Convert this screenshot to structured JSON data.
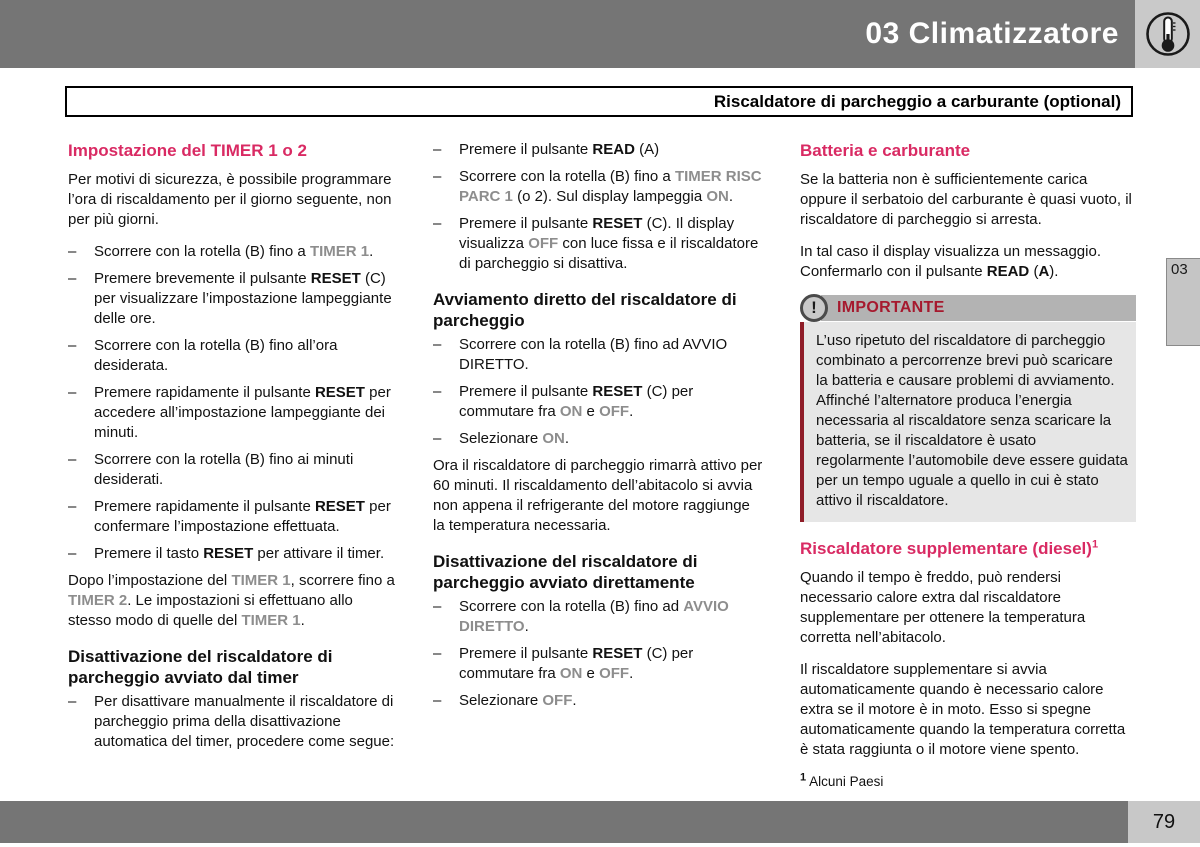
{
  "header": {
    "chapter_title": "03 Climatizzatore",
    "icon": "thermometer-icon"
  },
  "section_title": "Riscaldatore di parcheggio a carburante (optional)",
  "side_tab": "03",
  "page_number": "79",
  "colors": {
    "accent_heading": "#d92a63",
    "gray_term": "#8d8d8d",
    "note_red": "#a6192e",
    "bar_gray": "#757575",
    "icon_panel_gray": "#c9c9c9"
  },
  "columns": [
    {
      "blocks": [
        {
          "type": "heading-accent",
          "segments": [
            {
              "t": "Impostazione del TIMER 1 o 2"
            }
          ]
        },
        {
          "type": "para",
          "segments": [
            {
              "t": "Per motivi di sicurezza, è possibile programmare l’ora di riscaldamento per il giorno seguente, non per più giorni."
            }
          ]
        },
        {
          "type": "list",
          "items": [
            [
              {
                "t": "Scorrere con la rotella (B) fino a "
              },
              {
                "t": "TIMER 1",
                "s": "g"
              },
              {
                "t": "."
              }
            ],
            [
              {
                "t": "Premere brevemente il pulsante "
              },
              {
                "t": "RESET",
                "s": "b"
              },
              {
                "t": " (C) per visualizzare l’impostazione lampeggiante delle ore."
              }
            ],
            [
              {
                "t": "Scorrere con la rotella (B) fino all’ora desiderata."
              }
            ],
            [
              {
                "t": "Premere rapidamente il pulsante "
              },
              {
                "t": "RESET",
                "s": "b"
              },
              {
                "t": " per accedere all’impostazione lampeggiante dei minuti."
              }
            ],
            [
              {
                "t": "Scorrere con la rotella (B) fino ai minuti desiderati."
              }
            ],
            [
              {
                "t": "Premere rapidamente il pulsante "
              },
              {
                "t": "RESET",
                "s": "b"
              },
              {
                "t": " per confermare l’impostazione effettuata."
              }
            ],
            [
              {
                "t": "Premere il tasto "
              },
              {
                "t": "RESET",
                "s": "b"
              },
              {
                "t": " per attivare il timer."
              }
            ]
          ]
        },
        {
          "type": "para",
          "segments": [
            {
              "t": "Dopo l’impostazione del "
            },
            {
              "t": "TIMER 1",
              "s": "g"
            },
            {
              "t": ", scorrere fino a "
            },
            {
              "t": "TIMER 2",
              "s": "g"
            },
            {
              "t": ". Le impostazioni si effettuano allo stesso modo di quelle del "
            },
            {
              "t": "TIMER 1",
              "s": "g"
            },
            {
              "t": "."
            }
          ]
        },
        {
          "type": "heading",
          "segments": [
            {
              "t": "Disattivazione del riscaldatore di parcheggio avviato dal timer"
            }
          ]
        },
        {
          "type": "list",
          "items": [
            [
              {
                "t": "Per disattivare manualmente il riscaldatore di parcheggio prima della disattivazione automatica del timer, procedere come segue:"
              }
            ]
          ]
        }
      ]
    },
    {
      "blocks": [
        {
          "type": "list",
          "items": [
            [
              {
                "t": "Premere il pulsante "
              },
              {
                "t": "READ",
                "s": "b"
              },
              {
                "t": " (A)"
              }
            ],
            [
              {
                "t": "Scorrere con la rotella (B) fino a "
              },
              {
                "t": "TIMER RISC PARC 1",
                "s": "g"
              },
              {
                "t": " (o 2). Sul display lampeggia "
              },
              {
                "t": "ON",
                "s": "g"
              },
              {
                "t": "."
              }
            ],
            [
              {
                "t": "Premere il pulsante "
              },
              {
                "t": "RESET",
                "s": "b"
              },
              {
                "t": " (C). Il display visualizza "
              },
              {
                "t": "OFF",
                "s": "g"
              },
              {
                "t": " con luce fissa e il riscaldatore di parcheggio si disattiva."
              }
            ]
          ]
        },
        {
          "type": "heading",
          "segments": [
            {
              "t": "Avviamento diretto del riscaldatore di parcheggio"
            }
          ]
        },
        {
          "type": "list",
          "items": [
            [
              {
                "t": "Scorrere con la rotella (B) fino ad AVVIO DIRETTO."
              }
            ],
            [
              {
                "t": "Premere il pulsante "
              },
              {
                "t": "RESET",
                "s": "b"
              },
              {
                "t": " (C) per commutare fra "
              },
              {
                "t": "ON",
                "s": "g"
              },
              {
                "t": " e "
              },
              {
                "t": "OFF",
                "s": "g"
              },
              {
                "t": "."
              }
            ],
            [
              {
                "t": "Selezionare "
              },
              {
                "t": "ON",
                "s": "g"
              },
              {
                "t": "."
              }
            ]
          ]
        },
        {
          "type": "para",
          "segments": [
            {
              "t": "Ora il riscaldatore di parcheggio rimarrà attivo per 60 minuti. Il riscaldamento dell’abitacolo si avvia non appena il refrigerante del motore raggiunge la temperatura necessaria."
            }
          ]
        },
        {
          "type": "heading",
          "segments": [
            {
              "t": "Disattivazione del riscaldatore di parcheggio avviato direttamente"
            }
          ]
        },
        {
          "type": "list",
          "items": [
            [
              {
                "t": "Scorrere con la rotella (B) fino ad "
              },
              {
                "t": "AVVIO DIRETTO",
                "s": "g"
              },
              {
                "t": "."
              }
            ],
            [
              {
                "t": "Premere il pulsante "
              },
              {
                "t": "RESET",
                "s": "b"
              },
              {
                "t": " (C) per commutare fra "
              },
              {
                "t": "ON",
                "s": "g"
              },
              {
                "t": " e "
              },
              {
                "t": "OFF",
                "s": "g"
              },
              {
                "t": "."
              }
            ],
            [
              {
                "t": "Selezionare "
              },
              {
                "t": "OFF",
                "s": "g"
              },
              {
                "t": "."
              }
            ]
          ]
        }
      ]
    },
    {
      "blocks": [
        {
          "type": "heading-accent",
          "segments": [
            {
              "t": "Batteria e carburante"
            }
          ]
        },
        {
          "type": "para",
          "segments": [
            {
              "t": "Se la batteria non è sufficientemente carica oppure il serbatoio del carburante è quasi vuoto, il riscaldatore di parcheggio si arresta."
            }
          ]
        },
        {
          "type": "para",
          "segments": [
            {
              "t": "In tal caso il display visualizza un messaggio. Confermarlo con il pulsante "
            },
            {
              "t": "READ",
              "s": "b"
            },
            {
              "t": " ("
            },
            {
              "t": "A",
              "s": "b"
            },
            {
              "t": ")."
            }
          ]
        },
        {
          "type": "note",
          "title": "IMPORTANTE",
          "icon": "exclamation-icon",
          "paragraphs": [
            "L’uso ripetuto del riscaldatore di parcheggio combinato a percorrenze brevi può scaricare la batteria e causare problemi di avviamento.",
            "Affinché l’alternatore produca l’energia necessaria al riscaldatore senza scaricare la batteria, se il riscaldatore è usato regolarmente l’automobile deve essere guidata per un tempo uguale a quello in cui è stato attivo il riscaldatore."
          ]
        },
        {
          "type": "heading-accent",
          "segments": [
            {
              "t": "Riscaldatore supplementare (diesel)"
            },
            {
              "t": "1",
              "s": "sup"
            }
          ]
        },
        {
          "type": "para",
          "segments": [
            {
              "t": "Quando il tempo è freddo, può rendersi necessario calore extra dal riscaldatore supplementare per ottenere la temperatura corretta nell’abitacolo."
            }
          ]
        },
        {
          "type": "para",
          "segments": [
            {
              "t": "Il riscaldatore supplementare si avvia automaticamente quando è necessario calore extra se il motore è in moto. Esso si spegne automaticamente quando la temperatura corretta è stata raggiunta o il motore viene spento."
            }
          ]
        },
        {
          "type": "footnote",
          "segments": [
            {
              "t": "1",
              "s": "sup"
            },
            {
              "t": " Alcuni Paesi"
            }
          ]
        }
      ]
    }
  ]
}
